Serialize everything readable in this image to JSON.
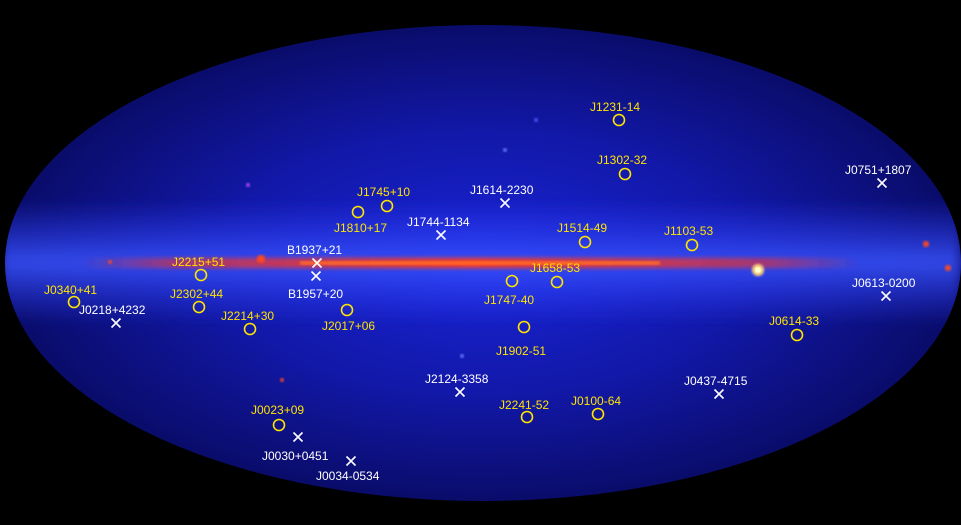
{
  "image": {
    "projection": "all-sky ellipse",
    "background_color": "#000000",
    "sky_color_dark": "#0b0b6e",
    "sky_color_mid": "#1f2cff",
    "plane_color": "#ff2a18"
  },
  "legend": {
    "circle_color": "#ffe400",
    "cross_color": "#ffffff"
  },
  "markers": [
    {
      "label": "J1231-14",
      "symbol": "circle"
    },
    {
      "label": "J1302-32",
      "symbol": "circle"
    },
    {
      "label": "J1745+10",
      "symbol": "circle"
    },
    {
      "label": "J1810+17",
      "symbol": "circle"
    },
    {
      "label": "J1514-49",
      "symbol": "circle"
    },
    {
      "label": "J1103-53",
      "symbol": "circle"
    },
    {
      "label": "J2215+51",
      "symbol": "circle"
    },
    {
      "label": "J1658-53",
      "symbol": "circle"
    },
    {
      "label": "J0340+41",
      "symbol": "circle"
    },
    {
      "label": "J2302+44",
      "symbol": "circle"
    },
    {
      "label": "J2017+06",
      "symbol": "circle"
    },
    {
      "label": "J1747-40",
      "symbol": "circle"
    },
    {
      "label": "J2214+30",
      "symbol": "circle"
    },
    {
      "label": "J0614-33",
      "symbol": "circle"
    },
    {
      "label": "J1902-51",
      "symbol": "circle"
    },
    {
      "label": "J0023+09",
      "symbol": "circle"
    },
    {
      "label": "J2241-52",
      "symbol": "circle"
    },
    {
      "label": "J0100-64",
      "symbol": "circle"
    },
    {
      "label": "J1614-2230",
      "symbol": "cross"
    },
    {
      "label": "J0751+1807",
      "symbol": "cross"
    },
    {
      "label": "J1744-1134",
      "symbol": "cross"
    },
    {
      "label": "B1937+21",
      "symbol": "cross"
    },
    {
      "label": "J0613-0200",
      "symbol": "cross"
    },
    {
      "label": "B1957+20",
      "symbol": "cross"
    },
    {
      "label": "J0218+4232",
      "symbol": "cross"
    },
    {
      "label": "J2124-3358",
      "symbol": "cross"
    },
    {
      "label": "J0437-4715",
      "symbol": "cross"
    },
    {
      "label": "J0030+0451",
      "symbol": "cross"
    },
    {
      "label": "J0034-0534",
      "symbol": "cross"
    }
  ]
}
